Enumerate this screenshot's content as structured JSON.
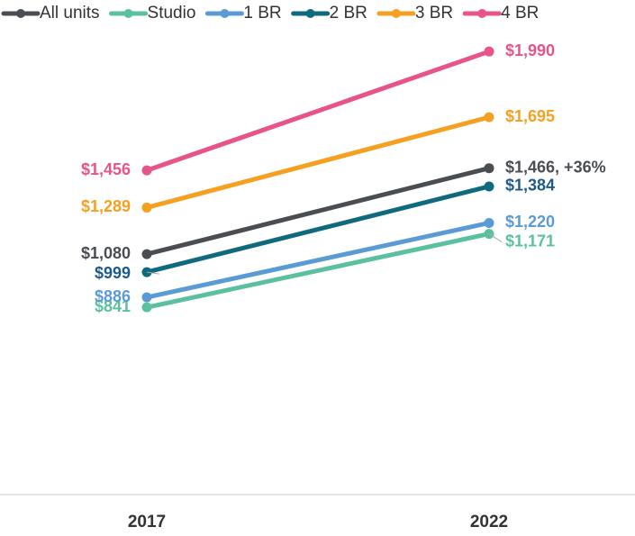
{
  "chart_data": {
    "type": "line",
    "categories": [
      "2017",
      "2022"
    ],
    "ylim": [
      0,
      2100
    ],
    "legend": "top",
    "series": [
      {
        "name": "All units",
        "color": "#4a4d52",
        "values": [
          1080,
          1466
        ],
        "value_labels": [
          "$1,080",
          "$1,466, +36%"
        ]
      },
      {
        "name": "Studio",
        "color": "#5bc0a0",
        "values": [
          841,
          1171
        ],
        "value_labels": [
          "$841",
          "$1,171"
        ]
      },
      {
        "name": "1 BR",
        "color": "#5b9bd5",
        "values": [
          886,
          1220
        ],
        "value_labels": [
          "$886",
          "$1,220"
        ]
      },
      {
        "name": "2 BR",
        "color": "#0e6a7c",
        "values": [
          999,
          1384
        ],
        "value_labels": [
          "$999",
          "$1,384"
        ]
      },
      {
        "name": "3 BR",
        "color": "#f5a020",
        "values": [
          1289,
          1695
        ],
        "value_labels": [
          "$1,289",
          "$1,695"
        ]
      },
      {
        "name": "4 BR",
        "color": "#e8538a",
        "values": [
          1456,
          1990
        ],
        "value_labels": [
          "$1,456",
          "$1,990"
        ]
      }
    ]
  }
}
